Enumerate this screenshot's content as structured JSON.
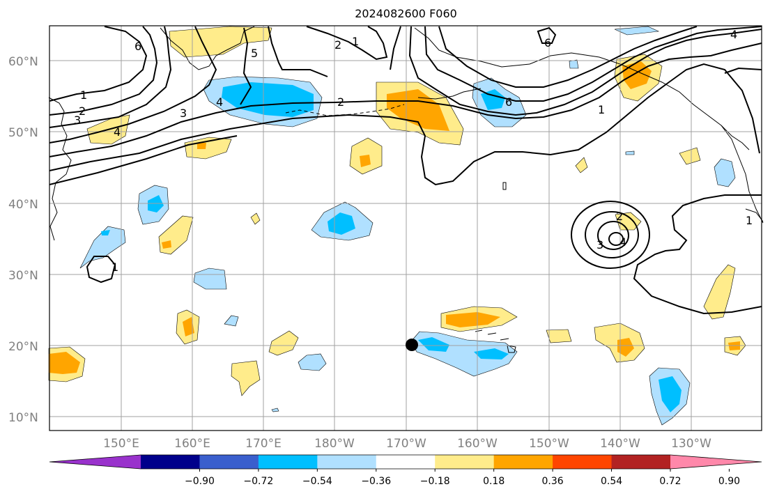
{
  "title": "2024082600 F060",
  "lat_labels": [
    "60°N",
    "50°N",
    "40°N",
    "30°N",
    "20°N",
    "10°N"
  ],
  "lon_labels": [
    "150°E",
    "160°E",
    "170°E",
    "180°W",
    "170°W",
    "160°W",
    "150°W",
    "140°W",
    "130°W"
  ],
  "colorbar": {
    "ticks": [
      "−0.90",
      "−0.72",
      "−0.54",
      "−0.36",
      "−0.18",
      "0.18",
      "0.36",
      "0.54",
      "0.72",
      "0.90"
    ],
    "colors": [
      "#9932cc",
      "#00008b",
      "#3a5fcd",
      "#00bfff",
      "#b0e0ff",
      "#ffffff",
      "#ffec8b",
      "#ffa500",
      "#ff4500",
      "#b22222",
      "#ff88aa"
    ]
  },
  "contour_labels": [
    "6",
    "5",
    "4",
    "3",
    "2",
    "1",
    "1",
    "2",
    "3",
    "4",
    "2",
    "1",
    "6",
    "6",
    "4",
    "1",
    "2",
    "3",
    "4",
    "1"
  ],
  "colors": {
    "light_blue": "#b0e0ff",
    "blue": "#00bfff",
    "yellow": "#ffec8b",
    "orange": "#ffa500",
    "grid": "#a0a0a0"
  }
}
